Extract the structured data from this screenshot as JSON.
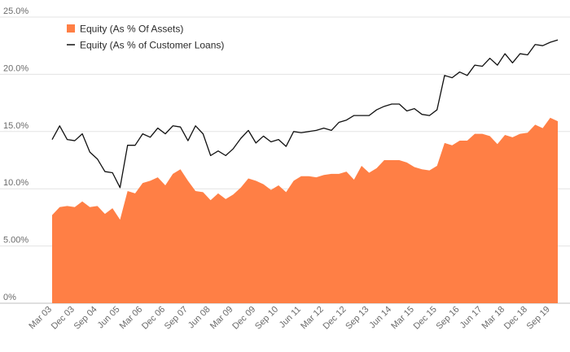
{
  "chart_data": {
    "type": "area",
    "x": [
      "Mar 03",
      "Jun 03",
      "Sep 03",
      "Dec 03",
      "Mar 04",
      "Jun 04",
      "Sep 04",
      "Dec 04",
      "Mar 05",
      "Jun 05",
      "Sep 05",
      "Dec 05",
      "Mar 06",
      "Jun 06",
      "Sep 06",
      "Dec 06",
      "Mar 07",
      "Jun 07",
      "Sep 07",
      "Dec 07",
      "Mar 08",
      "Jun 08",
      "Sep 08",
      "Dec 08",
      "Mar 09",
      "Jun 09",
      "Sep 09",
      "Dec 09",
      "Mar 10",
      "Jun 10",
      "Sep 10",
      "Dec 10",
      "Mar 11",
      "Jun 11",
      "Sep 11",
      "Dec 11",
      "Mar 12",
      "Jun 12",
      "Sep 12",
      "Dec 12",
      "Mar 13",
      "Jun 13",
      "Sep 13",
      "Dec 13",
      "Mar 14",
      "Jun 14",
      "Sep 14",
      "Dec 14",
      "Mar 15",
      "Jun 15",
      "Sep 15",
      "Dec 15",
      "Mar 16",
      "Jun 16",
      "Sep 16",
      "Dec 16",
      "Mar 17",
      "Jun 17",
      "Sep 17",
      "Dec 17",
      "Mar 18",
      "Jun 18",
      "Sep 18",
      "Dec 18",
      "Mar 19",
      "Jun 19",
      "Sep 19",
      "Dec 19"
    ],
    "tick_labels": [
      "Mar 03",
      "Dec 03",
      "Sep 04",
      "Jun 05",
      "Mar 06",
      "Dec 06",
      "Sep 07",
      "Jun 08",
      "Mar 09",
      "Dec 09",
      "Sep 10",
      "Jun 11",
      "Mar 12",
      "Dec 12",
      "Sep 13",
      "Jun 14",
      "Mar 15",
      "Dec 15",
      "Sep 16",
      "Jun 17",
      "Mar 18",
      "Dec 18",
      "Sep 19"
    ],
    "series": [
      {
        "name": "Equity (As % Of Assets)",
        "kind": "area",
        "color": "#ff7f45",
        "values": [
          7.7,
          8.4,
          8.5,
          8.4,
          8.9,
          8.4,
          8.5,
          7.8,
          8.3,
          7.3,
          9.8,
          9.6,
          10.5,
          10.7,
          11.0,
          10.3,
          11.3,
          11.7,
          10.7,
          9.8,
          9.7,
          9.0,
          9.6,
          9.1,
          9.5,
          10.1,
          10.9,
          10.7,
          10.4,
          9.9,
          10.3,
          9.7,
          10.7,
          11.1,
          11.1,
          11.0,
          11.2,
          11.3,
          11.3,
          11.5,
          10.8,
          12.0,
          11.4,
          11.8,
          12.5,
          12.5,
          12.5,
          12.3,
          11.9,
          11.7,
          11.6,
          12.0,
          14.0,
          13.8,
          14.2,
          14.2,
          14.8,
          14.8,
          14.6,
          13.9,
          14.7,
          14.5,
          14.8,
          14.9,
          15.6,
          15.3,
          16.2,
          15.9
        ]
      },
      {
        "name": "Equity (As % of Customer Loans)",
        "kind": "line",
        "color": "#111111",
        "values": [
          14.3,
          15.5,
          14.3,
          14.2,
          14.8,
          13.2,
          12.6,
          11.5,
          11.4,
          10.1,
          13.8,
          13.8,
          14.8,
          14.5,
          15.3,
          14.8,
          15.5,
          15.4,
          14.2,
          15.5,
          14.8,
          12.9,
          13.3,
          12.9,
          13.5,
          14.4,
          15.1,
          14.0,
          14.6,
          14.1,
          14.3,
          13.7,
          15.0,
          14.9,
          15.0,
          15.1,
          15.3,
          15.1,
          15.8,
          16.0,
          16.4,
          16.4,
          16.4,
          16.9,
          17.2,
          17.4,
          17.4,
          16.8,
          17.0,
          16.5,
          16.4,
          16.9,
          19.9,
          19.7,
          20.2,
          19.9,
          20.8,
          20.7,
          21.4,
          20.8,
          21.8,
          21.0,
          21.8,
          21.7,
          22.6,
          22.5,
          22.8,
          23.0
        ]
      }
    ],
    "y_tick_labels": [
      "0%",
      "5.00%",
      "10.0%",
      "15.0%",
      "20.0%",
      "25.0%"
    ],
    "y_ticks": [
      0,
      5,
      10,
      15,
      20,
      25
    ],
    "ylim": [
      0,
      25
    ],
    "title": "",
    "xlabel": "",
    "ylabel": "",
    "grid": true,
    "legend_position": "top-left"
  }
}
